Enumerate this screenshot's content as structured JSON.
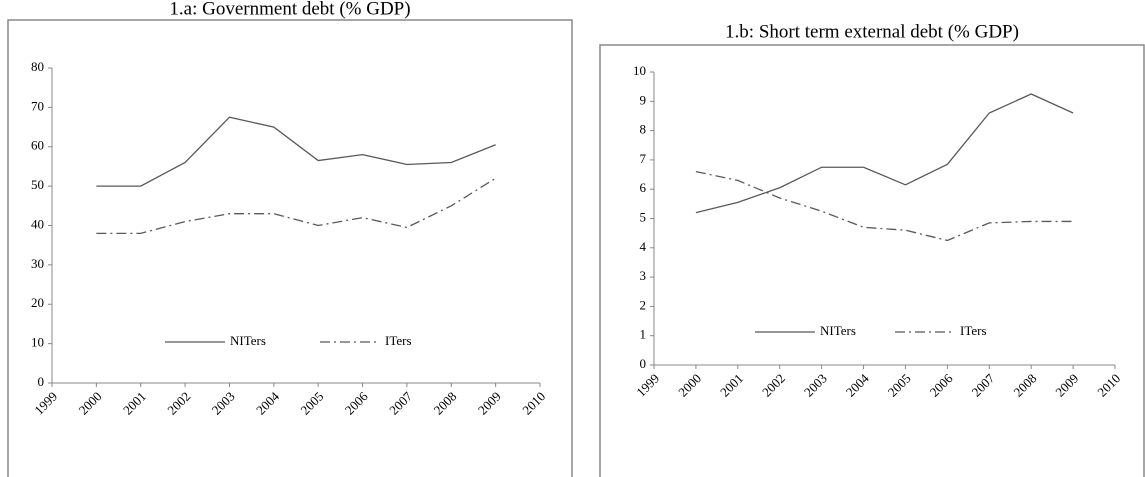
{
  "chart_data": [
    {
      "type": "line",
      "title": "1.a: Government debt (% GDP)",
      "x": [
        2000,
        2001,
        2002,
        2003,
        2004,
        2005,
        2006,
        2007,
        2008,
        2009
      ],
      "series": [
        {
          "name": "NITers",
          "color": "#595959",
          "line_style": "solid",
          "values": [
            50,
            50,
            56,
            67.5,
            65,
            56.5,
            58,
            55.5,
            56,
            60.5
          ]
        },
        {
          "name": "ITers",
          "color": "#595959",
          "line_style": "dashdot",
          "values": [
            38,
            38,
            41,
            43,
            43,
            40,
            42,
            39.5,
            45,
            52
          ]
        }
      ],
      "xlim": [
        1999,
        2010
      ],
      "xticks": [
        1999,
        2000,
        2001,
        2002,
        2003,
        2004,
        2005,
        2006,
        2007,
        2008,
        2009,
        2010
      ],
      "ylim": [
        0,
        80
      ],
      "yticks": [
        0,
        10,
        20,
        30,
        40,
        50,
        60,
        70,
        80
      ],
      "grid": false
    },
    {
      "type": "line",
      "title": "1.b: Short term external debt (% GDP)",
      "x": [
        2000,
        2001,
        2002,
        2003,
        2004,
        2005,
        2006,
        2007,
        2008,
        2009
      ],
      "series": [
        {
          "name": "NITers",
          "color": "#595959",
          "line_style": "solid",
          "values": [
            5.2,
            5.55,
            6.05,
            6.75,
            6.75,
            6.15,
            6.85,
            8.6,
            9.25,
            8.6
          ]
        },
        {
          "name": "ITers",
          "color": "#595959",
          "line_style": "dashdot",
          "values": [
            6.6,
            6.3,
            5.7,
            5.25,
            4.7,
            4.6,
            4.25,
            4.85,
            4.9,
            4.9
          ]
        }
      ],
      "xlim": [
        1999,
        2010
      ],
      "xticks": [
        1999,
        2000,
        2001,
        2002,
        2003,
        2004,
        2005,
        2006,
        2007,
        2008,
        2009,
        2010
      ],
      "ylim": [
        0,
        10
      ],
      "yticks": [
        0,
        1,
        2,
        3,
        4,
        5,
        6,
        7,
        8,
        9,
        10
      ],
      "grid": false
    }
  ]
}
